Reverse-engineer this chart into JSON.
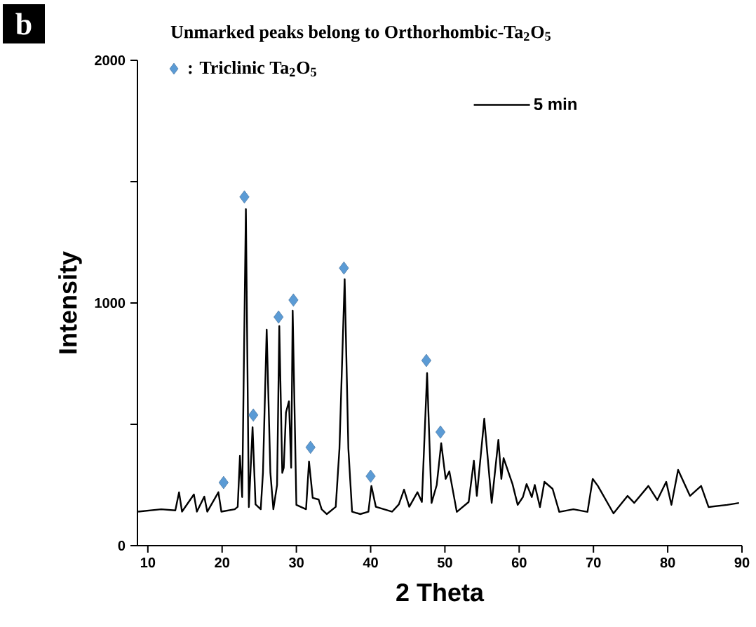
{
  "chart_data": {
    "type": "line",
    "title": "Unmarked peaks belong to Orthorhombic-Ta$_{2}$O$_{5}$",
    "xlabel": "2 Theta",
    "ylabel": "Intensity",
    "annotations": [
      "b"
    ],
    "xlim": [
      8.6,
      90
    ],
    "ylim": [
      0,
      2000
    ],
    "xticks": [
      10,
      20,
      30,
      40,
      50,
      60,
      70,
      80,
      90
    ],
    "yticks": [
      0,
      {
        "value": 500,
        "label": null
      },
      1000,
      {
        "value": 1500,
        "label": null
      },
      2000
    ],
    "legend": "top",
    "marker": "none",
    "series": [
      {
        "name": "5 min",
        "color": "#000000",
        "x": [
          8.7,
          11.8,
          13.7,
          14.2,
          14.6,
          16.2,
          16.6,
          17.6,
          18.0,
          19.5,
          19.9,
          21.7,
          22.1,
          22.4,
          22.7,
          23.2,
          23.6,
          24.1,
          24.5,
          25.2,
          25.5,
          26.0,
          26.5,
          26.9,
          27.4,
          27.7,
          28.1,
          28.3,
          28.6,
          29.0,
          29.3,
          29.5,
          30.0,
          31.3,
          31.7,
          32.2,
          33.0,
          33.4,
          34.1,
          35.3,
          35.8,
          36.5,
          37.0,
          37.5,
          38.6,
          39.7,
          40.1,
          40.7,
          42.9,
          43.8,
          44.5,
          45.2,
          46.3,
          46.9,
          47.6,
          48.2,
          48.9,
          49.5,
          50.1,
          50.6,
          51.6,
          53.2,
          53.9,
          54.3,
          55.3,
          56.3,
          57.2,
          57.6,
          57.9,
          59.1,
          59.8,
          60.5,
          61.0,
          61.7,
          62.1,
          62.8,
          63.4,
          64.5,
          65.4,
          67.3,
          69.2,
          69.9,
          70.6,
          72.7,
          74.6,
          75.5,
          77.4,
          78.6,
          79.8,
          80.5,
          81.4,
          83.0,
          84.5,
          85.5,
          88.0,
          89.6
        ],
        "values": [
          140,
          150,
          145,
          220,
          140,
          211,
          140,
          202,
          140,
          220,
          140,
          150,
          160,
          370,
          200,
          1387,
          159,
          488,
          170,
          150,
          300,
          890,
          300,
          150,
          250,
          905,
          300,
          321,
          549,
          595,
          321,
          968,
          168,
          150,
          347,
          197,
          190,
          150,
          130,
          160,
          400,
          1098,
          400,
          140,
          130,
          140,
          246,
          160,
          140,
          170,
          231,
          160,
          220,
          180,
          711,
          176,
          250,
          422,
          275,
          306,
          139,
          180,
          350,
          205,
          523,
          176,
          436,
          275,
          361,
          254,
          168,
          200,
          254,
          200,
          250,
          159,
          263,
          234,
          139,
          150,
          139,
          275,
          246,
          133,
          205,
          176,
          246,
          188,
          263,
          168,
          312,
          205,
          246,
          159,
          168,
          176
        ]
      },
      {
        "name": ": Triclinic Ta$_{2}$O$_{5}$",
        "type": "scatter",
        "marker": "diamond",
        "color": "#5b9bd5",
        "x": [
          20.2,
          23.0,
          24.2,
          27.6,
          29.6,
          31.9,
          36.4,
          40.0,
          47.5,
          49.4
        ],
        "values": [
          260,
          1437,
          538,
          942,
          1012,
          405,
          1144,
          286,
          763,
          468
        ]
      }
    ]
  }
}
